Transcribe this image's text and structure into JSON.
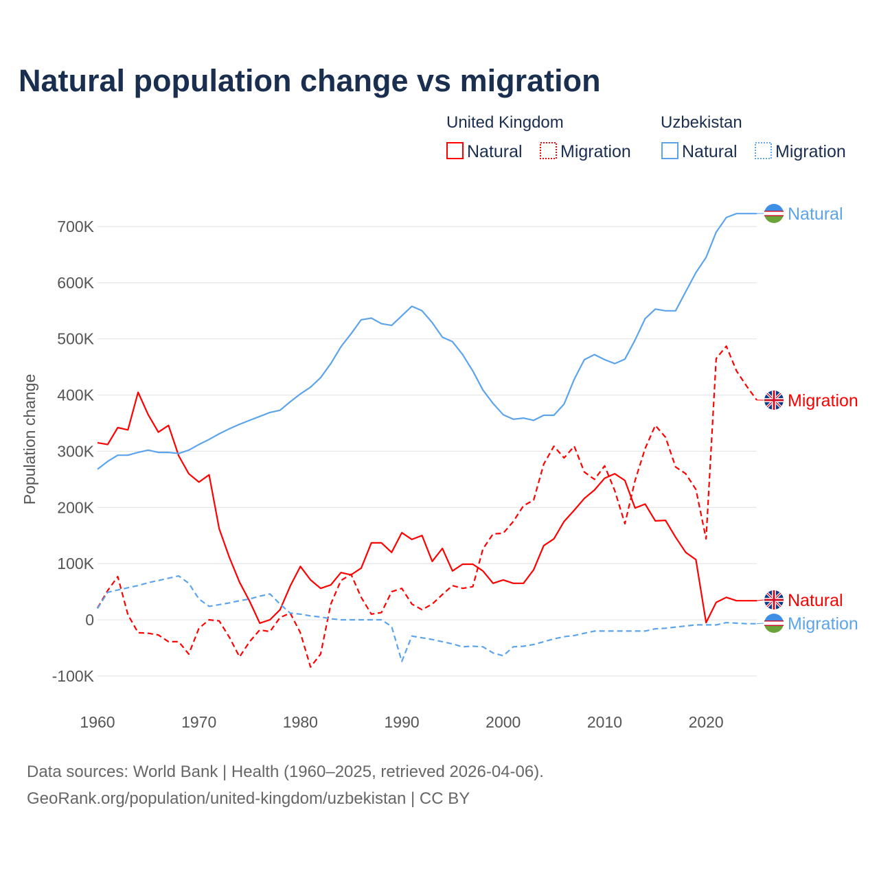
{
  "chart_data": {
    "type": "line",
    "title": "Natural population change vs migration",
    "xlabel": "",
    "ylabel": "Population change",
    "xlim": [
      1960,
      2025
    ],
    "ylim": [
      -100000,
      700000
    ],
    "x_ticks": [
      1960,
      1970,
      1980,
      1990,
      2000,
      2010,
      2020
    ],
    "x_tick_labels": [
      "1960",
      "1970",
      "1980",
      "1990",
      "2000",
      "2010",
      "2020"
    ],
    "y_ticks": [
      -100000,
      0,
      100000,
      200000,
      300000,
      400000,
      500000,
      600000,
      700000
    ],
    "y_tick_labels": [
      "-100K",
      "0",
      "100K",
      "200K",
      "300K",
      "400K",
      "500K",
      "600K",
      "700K"
    ],
    "grid": true,
    "legend_placement": "top-right",
    "legend": {
      "groups": [
        {
          "country": "United Kingdom",
          "items": [
            "Natural",
            "Migration"
          ]
        },
        {
          "country": "Uzbekistan",
          "items": [
            "Natural",
            "Migration"
          ]
        }
      ]
    },
    "start_year": 1960,
    "series": [
      {
        "name": "United Kingdom Natural",
        "country": "United Kingdom",
        "kind": "Natural",
        "color": "#ff0000",
        "dash": false,
        "end_label": "Natural",
        "flag": "uk-flag",
        "values": [
          315,
          312,
          342,
          338,
          405,
          365,
          334,
          346,
          292,
          260,
          245,
          258,
          162,
          111,
          67,
          33,
          -6,
          0,
          18,
          60,
          95,
          71,
          56,
          62,
          84,
          80,
          92,
          137,
          137,
          120,
          155,
          143,
          150,
          104,
          127,
          87,
          99,
          99,
          87,
          65,
          71,
          65,
          65,
          89,
          132,
          144,
          175,
          195,
          216,
          231,
          252,
          260,
          248,
          199,
          206,
          176,
          177,
          147,
          120,
          107,
          -5,
          31,
          40,
          34,
          34,
          34
        ]
      },
      {
        "name": "United Kingdom Migration",
        "country": "United Kingdom",
        "kind": "Migration",
        "color": "#ff0000",
        "dash": true,
        "end_label": "Migration",
        "flag": "uk-flag",
        "values": [
          21,
          52,
          77,
          9,
          -23,
          -24,
          -27,
          -39,
          -39,
          -61,
          -15,
          0,
          -2,
          -31,
          -66,
          -39,
          -18,
          -21,
          4,
          12,
          -23,
          -84,
          -61,
          28,
          70,
          81,
          40,
          10,
          13,
          50,
          56,
          28,
          18,
          28,
          45,
          61,
          56,
          59,
          126,
          153,
          154,
          175,
          203,
          213,
          277,
          309,
          288,
          309,
          263,
          250,
          274,
          230,
          171,
          248,
          305,
          346,
          325,
          272,
          260,
          232,
          144,
          465,
          487,
          443,
          416,
          391
        ]
      },
      {
        "name": "Uzbekistan Natural",
        "country": "Uzbekistan",
        "kind": "Natural",
        "color": "#5ba4ec",
        "dash": false,
        "end_label": "Natural",
        "flag": "uz-flag",
        "values": [
          268,
          282,
          293,
          293,
          298,
          302,
          298,
          298,
          296,
          302,
          312,
          321,
          331,
          340,
          348,
          355,
          362,
          369,
          373,
          388,
          402,
          414,
          431,
          456,
          486,
          509,
          534,
          537,
          527,
          524,
          541,
          558,
          550,
          529,
          503,
          495,
          472,
          443,
          409,
          385,
          365,
          357,
          359,
          355,
          364,
          364,
          384,
          428,
          463,
          472,
          463,
          456,
          464,
          498,
          536,
          553,
          550,
          550,
          584,
          618,
          645,
          690,
          716,
          723,
          723,
          723
        ]
      },
      {
        "name": "Uzbekistan Migration",
        "country": "Uzbekistan",
        "kind": "Migration",
        "color": "#5ba4ec",
        "dash": true,
        "end_label": "Migration",
        "flag": "uz-flag",
        "values": [
          20,
          49,
          53,
          57,
          61,
          66,
          70,
          74,
          78,
          65,
          37,
          24,
          27,
          30,
          34,
          37,
          42,
          46,
          28,
          12,
          10,
          7,
          5,
          2,
          0,
          0,
          0,
          0,
          0,
          -12,
          -74,
          -29,
          -32,
          -35,
          -39,
          -43,
          -48,
          -47,
          -48,
          -59,
          -64,
          -48,
          -47,
          -44,
          -39,
          -34,
          -30,
          -28,
          -24,
          -20,
          -20,
          -20,
          -20,
          -20,
          -20,
          -16,
          -15,
          -13,
          -11,
          -9,
          -9,
          -9,
          -5,
          -6,
          -7,
          -7
        ]
      }
    ],
    "value_unit": "thousands"
  },
  "footer": {
    "line1": "Data sources: World Bank | Health (1960–2025, retrieved 2026-04-06).",
    "line2": "GeoRank.org/population/united-kingdom/uzbekistan | CC BY"
  },
  "colors": {
    "uk": "#ff0000",
    "uz": "#5ba4ec",
    "title": "#1a2e4f"
  }
}
